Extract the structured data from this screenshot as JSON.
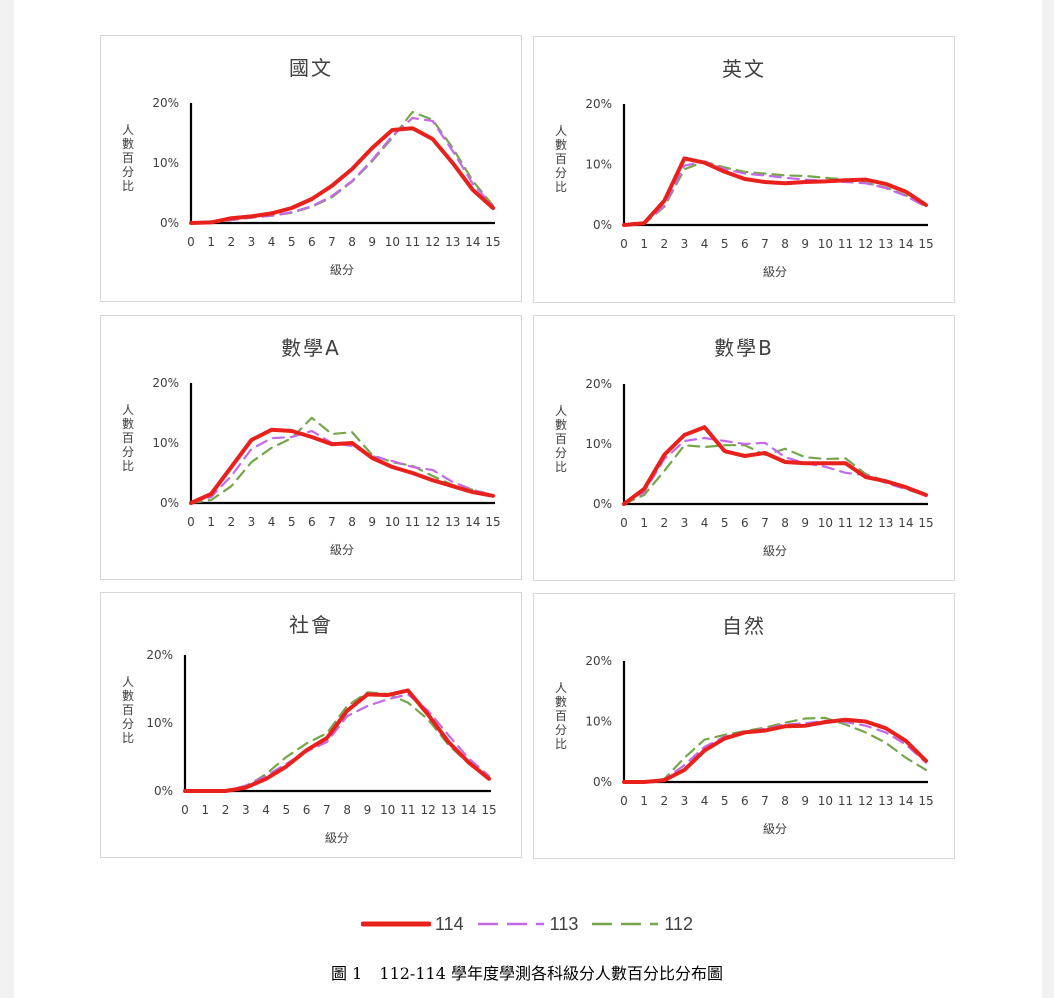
{
  "legend": [
    {
      "name": "114",
      "color": "#e8211c",
      "dash": "",
      "width": 4
    },
    {
      "name": "113",
      "color": "#c46ae8",
      "dash": "11,7",
      "width": 2.2
    },
    {
      "name": "112",
      "color": "#76a64b",
      "dash": "11,7",
      "width": 2.2
    }
  ],
  "caption": {
    "label": "圖 1",
    "text": "112-114 學年度學測各科級分人數百分比分布圖"
  },
  "chart_data": [
    {
      "type": "line",
      "title": "國文",
      "xlabel": "級分",
      "ylabel": "人數百分比",
      "x": [
        0,
        1,
        2,
        3,
        4,
        5,
        6,
        7,
        8,
        9,
        10,
        11,
        12,
        13,
        14,
        15
      ],
      "ylim": [
        0,
        20
      ],
      "yticks": [
        "0%",
        "10%",
        "20%"
      ],
      "series": [
        {
          "name": "114",
          "values": [
            0,
            0.1,
            0.8,
            1.1,
            1.6,
            2.5,
            4,
            6.2,
            9,
            12.5,
            15.5,
            15.8,
            14,
            10,
            5.5,
            2.5
          ]
        },
        {
          "name": "113",
          "values": [
            0,
            0.1,
            0.5,
            0.9,
            1.2,
            1.8,
            2.8,
            4.5,
            7,
            10.5,
            14.5,
            17.5,
            17,
            12,
            6.5,
            2.8
          ]
        },
        {
          "name": "112",
          "values": [
            0,
            0.1,
            0.5,
            0.9,
            1.2,
            1.7,
            2.7,
            4.3,
            6.9,
            10.3,
            14.2,
            18.5,
            17.2,
            12.5,
            7,
            2.9
          ]
        }
      ]
    },
    {
      "type": "line",
      "title": "英文",
      "xlabel": "級分",
      "ylabel": "人數百分比",
      "x": [
        0,
        1,
        2,
        3,
        4,
        5,
        6,
        7,
        8,
        9,
        10,
        11,
        12,
        13,
        14,
        15
      ],
      "ylim": [
        0,
        20
      ],
      "yticks": [
        "0%",
        "10%",
        "20%"
      ],
      "series": [
        {
          "name": "114",
          "values": [
            0,
            0.3,
            4,
            11,
            10.3,
            8.8,
            7.6,
            7.1,
            6.9,
            7.1,
            7.2,
            7.4,
            7.5,
            6.8,
            5.5,
            3.3
          ]
        },
        {
          "name": "113",
          "values": [
            0,
            0.2,
            3.2,
            9.8,
            10.5,
            9.2,
            8.5,
            8.2,
            7.8,
            7.5,
            7.3,
            7.1,
            6.9,
            6.1,
            4.8,
            3
          ]
        },
        {
          "name": "112",
          "values": [
            0,
            0.2,
            3,
            9.2,
            10.5,
            9.5,
            8.8,
            8.5,
            8.2,
            8.1,
            7.8,
            7.5,
            7,
            6.2,
            4.9,
            3
          ]
        }
      ]
    },
    {
      "type": "line",
      "title": "數學A",
      "xlabel": "級分",
      "ylabel": "人數百分比",
      "x": [
        0,
        1,
        2,
        3,
        4,
        5,
        6,
        7,
        8,
        9,
        10,
        11,
        12,
        13,
        14,
        15
      ],
      "ylim": [
        0,
        20
      ],
      "yticks": [
        "0%",
        "10%",
        "20%"
      ],
      "series": [
        {
          "name": "114",
          "values": [
            0,
            1.5,
            6,
            10.5,
            12.2,
            12,
            11,
            9.8,
            10,
            7.5,
            6,
            5,
            3.8,
            2.8,
            1.8,
            1.2
          ]
        },
        {
          "name": "113",
          "values": [
            0,
            1,
            4.5,
            9,
            10.8,
            11,
            12,
            10,
            9.5,
            7.8,
            7,
            6,
            5.5,
            3.5,
            2.2,
            1.3
          ]
        },
        {
          "name": "112",
          "values": [
            0,
            0.5,
            2.8,
            6.8,
            9.2,
            10.8,
            14.2,
            11.5,
            11.8,
            8,
            6.8,
            6.2,
            4.5,
            3,
            2.2,
            1.3
          ]
        }
      ]
    },
    {
      "type": "line",
      "title": "數學B",
      "xlabel": "級分",
      "ylabel": "人數百分比",
      "x": [
        0,
        1,
        2,
        3,
        4,
        5,
        6,
        7,
        8,
        9,
        10,
        11,
        12,
        13,
        14,
        15
      ],
      "ylim": [
        0,
        20
      ],
      "yticks": [
        "0%",
        "10%",
        "20%"
      ],
      "series": [
        {
          "name": "114",
          "values": [
            0,
            2.5,
            8.2,
            11.5,
            12.8,
            8.8,
            8,
            8.5,
            7,
            6.8,
            6.8,
            6.8,
            4.5,
            3.8,
            2.8,
            1.5
          ]
        },
        {
          "name": "113",
          "values": [
            0,
            2,
            7.5,
            10.5,
            11,
            10.5,
            10,
            10.2,
            7.8,
            6.8,
            6.2,
            5.2,
            4.8,
            3.5,
            2.5,
            1.5
          ]
        },
        {
          "name": "112",
          "values": [
            0,
            1.5,
            5.5,
            9.8,
            9.5,
            9.8,
            9.8,
            8.2,
            9.2,
            7.8,
            7.5,
            7.6,
            5,
            3.8,
            2.5,
            1.4
          ]
        }
      ]
    },
    {
      "type": "line",
      "title": "社會",
      "xlabel": "級分",
      "ylabel": "人數百分比",
      "x": [
        0,
        1,
        2,
        3,
        4,
        5,
        6,
        7,
        8,
        9,
        10,
        11,
        12,
        13,
        14,
        15
      ],
      "ylim": [
        0,
        20
      ],
      "yticks": [
        "0%",
        "10%",
        "20%"
      ],
      "series": [
        {
          "name": "114",
          "values": [
            0,
            0,
            0,
            0.5,
            1.8,
            3.6,
            6,
            7.8,
            11.8,
            14.2,
            14.1,
            14.8,
            11.2,
            7.2,
            4.2,
            1.8
          ]
        },
        {
          "name": "113",
          "values": [
            0,
            0,
            0,
            0.8,
            2.2,
            4,
            5.8,
            7.2,
            11,
            12.5,
            13.5,
            14.2,
            11.8,
            8.2,
            4.8,
            2.2
          ]
        },
        {
          "name": "112",
          "values": [
            0,
            0,
            0,
            0.6,
            2.5,
            5,
            7,
            8.5,
            12.5,
            14.5,
            14.3,
            13,
            10.5,
            6.8,
            4,
            1.8
          ]
        }
      ]
    },
    {
      "type": "line",
      "title": "自然",
      "xlabel": "級分",
      "ylabel": "人數百分比",
      "x": [
        0,
        1,
        2,
        3,
        4,
        5,
        6,
        7,
        8,
        9,
        10,
        11,
        12,
        13,
        14,
        15
      ],
      "ylim": [
        0,
        20
      ],
      "yticks": [
        "0%",
        "10%",
        "20%"
      ],
      "series": [
        {
          "name": "114",
          "values": [
            0,
            0,
            0.3,
            2,
            5.2,
            7.2,
            8.2,
            8.5,
            9.2,
            9.3,
            9.9,
            10.3,
            10,
            8.9,
            6.8,
            3.5
          ]
        },
        {
          "name": "113",
          "values": [
            0,
            0,
            0.4,
            2.8,
            5.8,
            7.5,
            8.2,
            8.8,
            9.5,
            9.7,
            10.1,
            9.9,
            9.3,
            8.2,
            6.2,
            3.2
          ]
        },
        {
          "name": "112",
          "values": [
            0,
            0,
            0.5,
            4,
            7,
            7.8,
            8.4,
            9,
            9.8,
            10.5,
            10.6,
            9.5,
            8.2,
            6.5,
            4,
            2
          ]
        }
      ]
    }
  ]
}
